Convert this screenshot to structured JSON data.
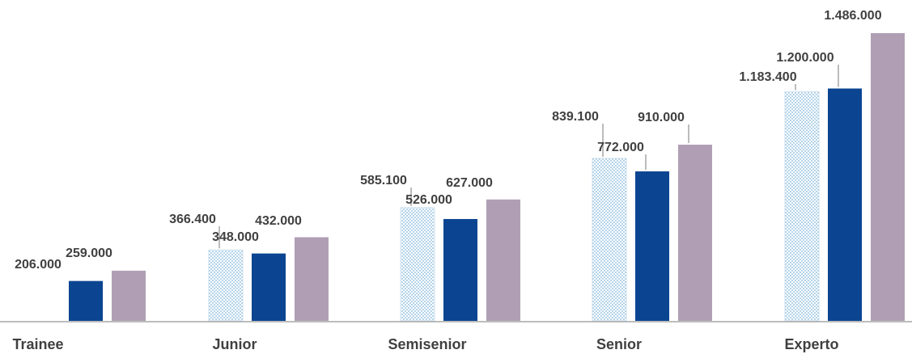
{
  "chart_data": {
    "type": "bar",
    "categories": [
      "Trainee",
      "Junior",
      "Semisenior",
      "Senior",
      "Experto"
    ],
    "series": [
      {
        "values": [
          null,
          366400,
          585100,
          839100,
          1183400
        ],
        "color": "#7fb6dc",
        "pattern": "dotted"
      },
      {
        "values": [
          206000,
          348000,
          526000,
          772000,
          1200000
        ],
        "color": "#0b4591"
      },
      {
        "values": [
          259000,
          432000,
          627000,
          910000,
          1486000
        ],
        "color": "#b09fb4"
      }
    ],
    "data_labels": [
      [
        null,
        "366.400",
        "585.100",
        "839.100",
        "1.183.400"
      ],
      [
        "206.000",
        "348.000",
        "526.000",
        "772.000",
        "1.200.000"
      ],
      [
        "259.000",
        "432.000",
        "627.000",
        "910.000",
        "1.486.000"
      ]
    ],
    "ylim": [
      0,
      1486000
    ],
    "grid": false,
    "legend": "none",
    "title": "",
    "xlabel": "",
    "ylabel": ""
  }
}
